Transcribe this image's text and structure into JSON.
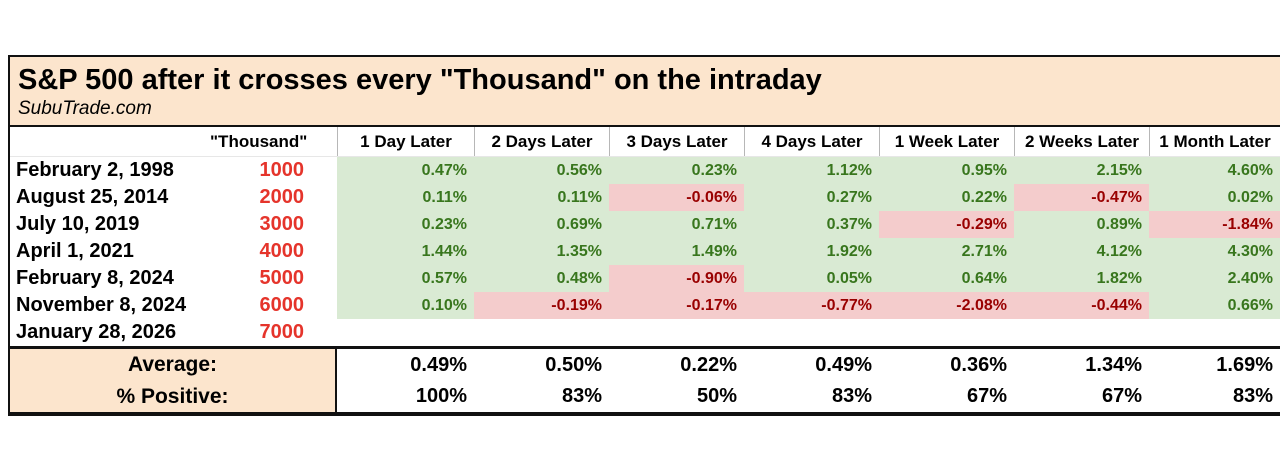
{
  "title": "S&P 500 after it crosses every \"Thousand\" on the intraday",
  "subtitle": "SubuTrade.com",
  "colors": {
    "title_bar_bg": "#fce5cd",
    "positive_cell_bg": "#d9ead3",
    "negative_cell_bg": "#f4cccc",
    "positive_text": "#38761d",
    "negative_text": "#990000",
    "thousand_text": "#e5342b"
  },
  "chart_data": {
    "type": "table",
    "title": "S&P 500 after it crosses every \"Thousand\" on the intraday",
    "source": "SubuTrade.com",
    "columns": [
      "\"Thousand\"",
      "1 Day Later",
      "2 Days Later",
      "3 Days Later",
      "4 Days Later",
      "1 Week Later",
      "2 Weeks Later",
      "1 Month Later"
    ],
    "rows": [
      {
        "date": "February 2, 1998",
        "thousand": "1000",
        "values": [
          "0.47%",
          "0.56%",
          "0.23%",
          "1.12%",
          "0.95%",
          "2.15%",
          "4.60%"
        ]
      },
      {
        "date": "August 25, 2014",
        "thousand": "2000",
        "values": [
          "0.11%",
          "0.11%",
          "-0.06%",
          "0.27%",
          "0.22%",
          "-0.47%",
          "0.02%"
        ]
      },
      {
        "date": "July 10, 2019",
        "thousand": "3000",
        "values": [
          "0.23%",
          "0.69%",
          "0.71%",
          "0.37%",
          "-0.29%",
          "0.89%",
          "-1.84%"
        ]
      },
      {
        "date": "April 1, 2021",
        "thousand": "4000",
        "values": [
          "1.44%",
          "1.35%",
          "1.49%",
          "1.92%",
          "2.71%",
          "4.12%",
          "4.30%"
        ]
      },
      {
        "date": "February 8, 2024",
        "thousand": "5000",
        "values": [
          "0.57%",
          "0.48%",
          "-0.90%",
          "0.05%",
          "0.64%",
          "1.82%",
          "2.40%"
        ]
      },
      {
        "date": "November 8, 2024",
        "thousand": "6000",
        "values": [
          "0.10%",
          "-0.19%",
          "-0.17%",
          "-0.77%",
          "-2.08%",
          "-0.44%",
          "0.66%"
        ]
      },
      {
        "date": "January 28, 2026",
        "thousand": "7000",
        "values": [
          "",
          "",
          "",
          "",
          "",
          "",
          ""
        ]
      }
    ],
    "summary": {
      "average_label": "Average:",
      "average": [
        "0.49%",
        "0.50%",
        "0.22%",
        "0.49%",
        "0.36%",
        "1.34%",
        "1.69%"
      ],
      "positive_label": "% Positive:",
      "positive": [
        "100%",
        "83%",
        "50%",
        "83%",
        "67%",
        "67%",
        "83%"
      ]
    }
  }
}
